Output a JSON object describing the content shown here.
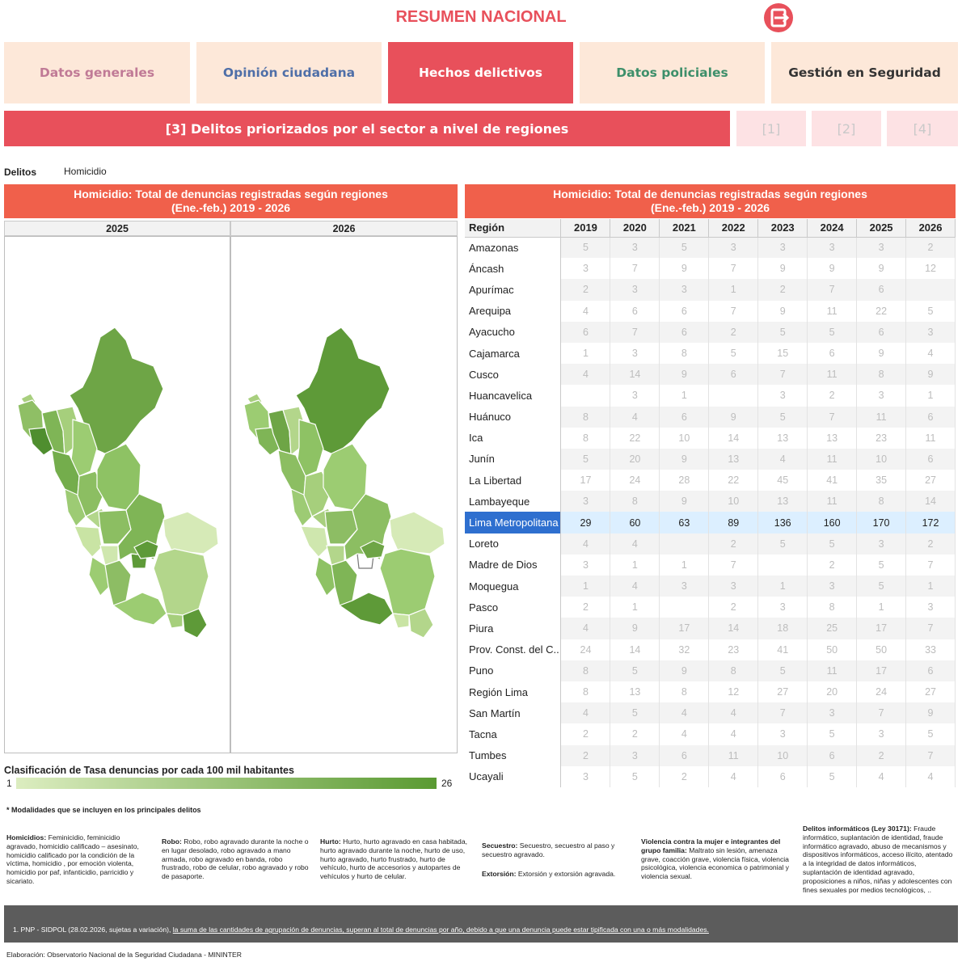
{
  "header": {
    "title": "RESUMEN NACIONAL"
  },
  "tabs": [
    {
      "label": "Datos generales",
      "color": "#c07a96"
    },
    {
      "label": "Opinión ciudadana",
      "color": "#4f6fa8"
    },
    {
      "label": "Hechos delictivos",
      "color": "#ffffff"
    },
    {
      "label": "Datos policiales",
      "color": "#3d8f6a"
    },
    {
      "label": "Gestión en Seguridad",
      "color": "#333333"
    }
  ],
  "subnav": {
    "active": "[3] Delitos priorizados por el sector a nivel de regiones",
    "options": [
      "[1]",
      "[2]",
      "[4]"
    ]
  },
  "filter": {
    "label": "Delitos",
    "value": "Homicidio"
  },
  "map_panel": {
    "title_line1": "Homicidio: Total de denuncias registradas según regiones",
    "title_line2": "(Ene.-feb.) 2019 - 2026",
    "years": [
      "2025",
      "2026"
    ]
  },
  "legend": {
    "title": "Clasificación de Tasa denuncias por cada 100 mil habitantes",
    "min": "1",
    "max": "26"
  },
  "table_panel": {
    "title_line1": "Homicidio: Total de denuncias registradas según regiones",
    "title_line2": "(Ene.-feb.) 2019 - 2026",
    "columns": [
      "Región",
      "2019",
      "2020",
      "2021",
      "2022",
      "2023",
      "2024",
      "2025",
      "2026"
    ],
    "rows": [
      [
        "Amazonas",
        "5",
        "3",
        "5",
        "3",
        "3",
        "3",
        "3",
        "2"
      ],
      [
        "Áncash",
        "3",
        "7",
        "9",
        "7",
        "9",
        "9",
        "9",
        "12"
      ],
      [
        "Apurímac",
        "2",
        "3",
        "3",
        "1",
        "2",
        "7",
        "6",
        ""
      ],
      [
        "Arequipa",
        "4",
        "6",
        "6",
        "7",
        "9",
        "11",
        "22",
        "5"
      ],
      [
        "Ayacucho",
        "6",
        "7",
        "6",
        "2",
        "5",
        "5",
        "6",
        "3"
      ],
      [
        "Cajamarca",
        "1",
        "3",
        "8",
        "5",
        "15",
        "6",
        "9",
        "4"
      ],
      [
        "Cusco",
        "4",
        "14",
        "9",
        "6",
        "7",
        "11",
        "8",
        "9"
      ],
      [
        "Huancavelica",
        "",
        "3",
        "1",
        "",
        "3",
        "2",
        "3",
        "1"
      ],
      [
        "Huánuco",
        "8",
        "4",
        "6",
        "9",
        "5",
        "7",
        "11",
        "6"
      ],
      [
        "Ica",
        "8",
        "22",
        "10",
        "14",
        "13",
        "13",
        "23",
        "11"
      ],
      [
        "Junín",
        "5",
        "20",
        "9",
        "13",
        "4",
        "11",
        "10",
        "6"
      ],
      [
        "La Libertad",
        "17",
        "24",
        "28",
        "22",
        "45",
        "41",
        "35",
        "27"
      ],
      [
        "Lambayeque",
        "3",
        "8",
        "9",
        "10",
        "13",
        "11",
        "8",
        "14"
      ],
      [
        "Lima Metropolitana",
        "29",
        "60",
        "63",
        "89",
        "136",
        "160",
        "170",
        "172"
      ],
      [
        "Loreto",
        "4",
        "4",
        "",
        "2",
        "5",
        "5",
        "3",
        "2"
      ],
      [
        "Madre de Dios",
        "3",
        "1",
        "1",
        "7",
        "",
        "2",
        "5",
        "7"
      ],
      [
        "Moquegua",
        "1",
        "4",
        "3",
        "3",
        "1",
        "3",
        "5",
        "1"
      ],
      [
        "Pasco",
        "2",
        "1",
        "",
        "2",
        "3",
        "8",
        "1",
        "3"
      ],
      [
        "Piura",
        "4",
        "9",
        "17",
        "14",
        "18",
        "25",
        "17",
        "7"
      ],
      [
        "Prov. Const. del C..",
        "24",
        "14",
        "32",
        "23",
        "41",
        "50",
        "50",
        "33"
      ],
      [
        "Puno",
        "8",
        "5",
        "9",
        "8",
        "5",
        "11",
        "17",
        "6"
      ],
      [
        "Región Lima",
        "8",
        "13",
        "8",
        "12",
        "27",
        "20",
        "24",
        "27"
      ],
      [
        "San Martín",
        "4",
        "5",
        "4",
        "4",
        "7",
        "3",
        "7",
        "9"
      ],
      [
        "Tacna",
        "2",
        "2",
        "4",
        "4",
        "3",
        "5",
        "3",
        "5"
      ],
      [
        "Tumbes",
        "2",
        "3",
        "6",
        "11",
        "10",
        "6",
        "2",
        "7"
      ],
      [
        "Ucayali",
        "3",
        "5",
        "2",
        "4",
        "6",
        "5",
        "4",
        "4"
      ]
    ],
    "highlight_row": "Lima Metropolitana"
  },
  "notes": {
    "title": "* Modalidades que se incluyen en los principales delitos",
    "homicidios_label": "Homicidios:",
    "homicidios_text": " Feminicidio, feminicidio agravado, homicidio calificado – asesinato, homicidio calificado por la condición de la víctima, homicidio , por emoción violenta, homicidio por paf, infanticidio, parricidio y sicariato.",
    "robo_label": "Robo:",
    "robo_text": " Robo, robo agravado durante la noche o en lugar desolado, robo agravado a mano armada, robo agravado en banda, robo frustrado, robo de celular, robo agravado y robo de pasaporte.",
    "hurto_label": "Hurto:",
    "hurto_text": " Hurto, hurto agravado en casa habitada, hurto agravado durante la noche, hurto de uso, hurto agravado, hurto frustrado, hurto de vehículo, hurto de accesorios y autopartes de vehículos y hurto de celular.",
    "secuestro_label": "Secuestro:",
    "secuestro_text": " Secuestro, secuestro al paso y secuestro agravado.",
    "extorsion_label": "Extorsión:",
    "extorsion_text": " Extorsión y extorsión agravada.",
    "violencia_label": "Violencia contra la mujer e integrantes del grupo familia:",
    "violencia_text": " Maltrato sin lesión, amenaza grave, coacción grave, violencia física, violencia psicológica, violencia economica o patrimonial y violencia sexual.",
    "informaticos_label": "Delitos informáticos (Ley 30171):",
    "informaticos_text": " Fraude informático, suplantación de identidad, fraude informático agravado, abuso de mecanismos y dispositivos informáticos, acceso ilícito, atentado a la integridad de datos informáticos, suplantación de identidad agravado, proposiciones a niños, niñas y adolescentes con fines sexuales por medios tecnológicos, .."
  },
  "footer": {
    "source": "1. PNP - SIDPOL (28.02.2026, sujetas a variación), ",
    "disclaimer": "la suma de las cantidades de agrupación de denuncias, superan al total de denuncias por año, debido a que una denuncia puede estar tipificada con una o más modalidades.",
    "elaboration": "Elaboración: Observatorio Nacional de la Seguridad Ciudadana - MININTER"
  },
  "colors": {
    "accent": "#e8505b",
    "panel_head": "#f0604b",
    "tab_bg": "#fde8d9",
    "highlight": "#2e6fcf",
    "map_light": "#dcedc0",
    "map_dark": "#5a9a32"
  },
  "icons": {
    "logo": "exit-door-logo-icon"
  }
}
